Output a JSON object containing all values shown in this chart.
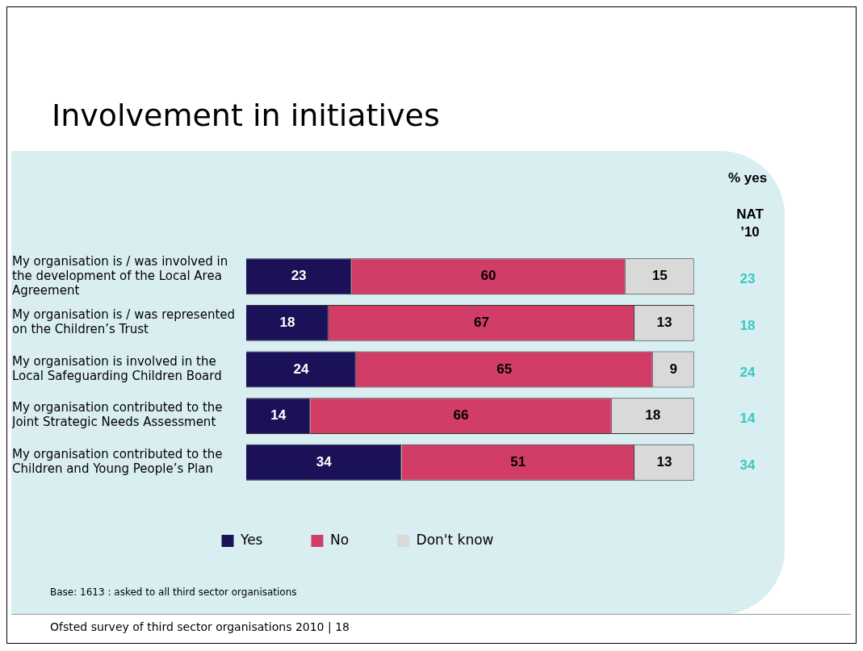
{
  "chart_data": {
    "type": "bar",
    "orientation": "horizontal",
    "stacked": true,
    "title": "Involvement in initiatives",
    "categories": [
      "My organisation is / was involved in the development of the Local Area Agreement",
      "My organisation is / was represented on the Children’s Trust",
      "My organisation is involved in the Local Safeguarding Children Board",
      "My organisation contributed to the Joint Strategic Needs Assessment",
      "My organisation contributed to the Children and Young People’s Plan"
    ],
    "series": [
      {
        "name": "Yes",
        "color": "#1b1158",
        "values": [
          23,
          18,
          24,
          14,
          34
        ]
      },
      {
        "name": "No",
        "color": "#d23d68",
        "values": [
          60,
          67,
          65,
          66,
          51
        ]
      },
      {
        "name": "Don't know",
        "color": "#d9d9d9",
        "values": [
          15,
          13,
          9,
          18,
          13
        ]
      }
    ],
    "data_labels": true,
    "legend": "bottom",
    "annotations": [
      "% yes",
      "NAT ’10",
      "23",
      "18",
      "24",
      "14",
      "34",
      "Base: 1613 : asked to all third sector organisations",
      "Ofsted survey of third sector organisations 2010 | 18"
    ]
  }
}
